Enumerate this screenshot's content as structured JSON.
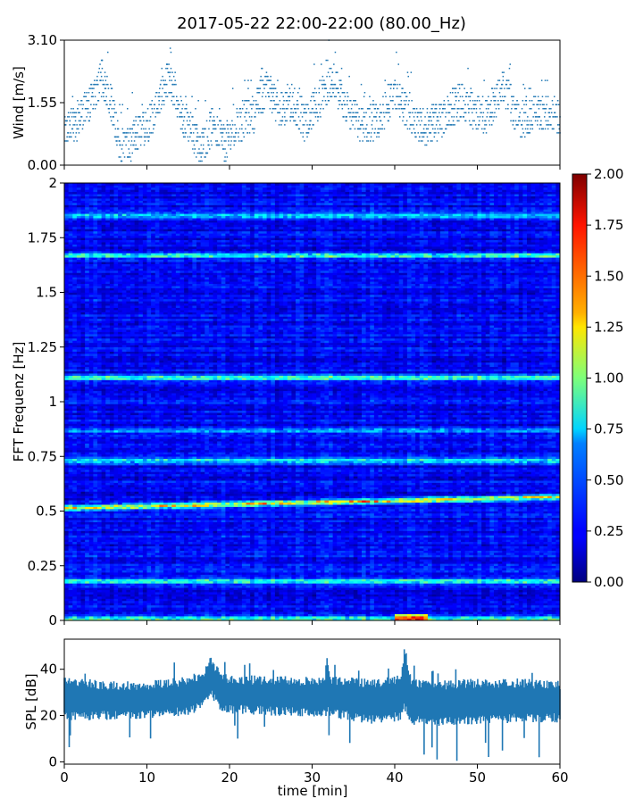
{
  "figure": {
    "title": "2017-05-22 22:00-22:00 (80.00_Hz)"
  },
  "chart_data": [
    {
      "type": "scatter",
      "panel": "wind",
      "ylabel": "Wind [m/s]",
      "xlim": [
        0,
        60
      ],
      "ylim": [
        0,
        3.1
      ],
      "yticks": [
        "0.00",
        "1.55",
        "3.10"
      ],
      "xtick_values": [
        0,
        10,
        20,
        30,
        40,
        50,
        60
      ],
      "x_unit": "min",
      "color": "#1f77b4",
      "envelope": [
        {
          "t": 0,
          "y": 0.8
        },
        {
          "t": 1.5,
          "y": 1.1
        },
        {
          "t": 3,
          "y": 1.5
        },
        {
          "t": 4.5,
          "y": 2.2
        },
        {
          "t": 5.5,
          "y": 1.6
        },
        {
          "t": 6.5,
          "y": 0.6
        },
        {
          "t": 7.5,
          "y": 0.4
        },
        {
          "t": 8.5,
          "y": 0.7
        },
        {
          "t": 10,
          "y": 1.0
        },
        {
          "t": 11.5,
          "y": 1.6
        },
        {
          "t": 12.5,
          "y": 2.2
        },
        {
          "t": 14,
          "y": 1.3
        },
        {
          "t": 15.5,
          "y": 0.8
        },
        {
          "t": 16.5,
          "y": 0.5
        },
        {
          "t": 18,
          "y": 1.0
        },
        {
          "t": 19.5,
          "y": 0.5
        },
        {
          "t": 21,
          "y": 1.0
        },
        {
          "t": 23,
          "y": 1.3
        },
        {
          "t": 24.5,
          "y": 2.0
        },
        {
          "t": 26,
          "y": 1.3
        },
        {
          "t": 27.5,
          "y": 1.6
        },
        {
          "t": 29,
          "y": 1.0
        },
        {
          "t": 31,
          "y": 1.7
        },
        {
          "t": 32.5,
          "y": 2.1
        },
        {
          "t": 34,
          "y": 1.4
        },
        {
          "t": 36,
          "y": 1.0
        },
        {
          "t": 38,
          "y": 1.1
        },
        {
          "t": 40,
          "y": 1.8
        },
        {
          "t": 42,
          "y": 1.1
        },
        {
          "t": 44,
          "y": 0.9
        },
        {
          "t": 46,
          "y": 1.2
        },
        {
          "t": 48,
          "y": 1.6
        },
        {
          "t": 49.5,
          "y": 1.3
        },
        {
          "t": 51,
          "y": 1.2
        },
        {
          "t": 53,
          "y": 2.0
        },
        {
          "t": 55,
          "y": 1.1
        },
        {
          "t": 57,
          "y": 1.3
        },
        {
          "t": 59,
          "y": 1.3
        },
        {
          "t": 60,
          "y": 1.2
        }
      ]
    },
    {
      "type": "heatmap",
      "panel": "spectrogram",
      "ylabel": "FFT Frequenz [Hz]",
      "xlim": [
        0,
        60
      ],
      "ylim": [
        0,
        2
      ],
      "yticks": [
        "0",
        "0.25",
        "0.5",
        "0.75",
        "1",
        "1.25",
        "1.5",
        "1.75",
        "2"
      ],
      "colormap": "jet",
      "colorbar": {
        "min": 0,
        "max": 2,
        "ticks": [
          "0.00",
          "0.25",
          "0.50",
          "0.75",
          "1.00",
          "1.25",
          "1.50",
          "1.75",
          "2.00"
        ]
      },
      "background_level": 0.25,
      "bands": [
        {
          "freq": 0.01,
          "level": 1.15
        },
        {
          "freq": 0.18,
          "level": 1.0
        },
        {
          "freq": 0.54,
          "level": 1.5
        },
        {
          "freq": 0.73,
          "level": 0.95
        },
        {
          "freq": 1.11,
          "level": 1.1
        },
        {
          "freq": 1.67,
          "level": 1.2
        },
        {
          "freq": 0.87,
          "level": 0.8
        },
        {
          "freq": 1.85,
          "level": 0.8
        }
      ]
    },
    {
      "type": "area",
      "panel": "spl",
      "ylabel": "SPL [dB]",
      "xlabel": "time [min]",
      "xlim": [
        0,
        60
      ],
      "ylim": [
        -1,
        53
      ],
      "yticks": [
        "0",
        "20",
        "40"
      ],
      "xticks": [
        "0",
        "10",
        "20",
        "30",
        "40",
        "50",
        "60"
      ],
      "color": "#1f77b4",
      "envelope": [
        {
          "t": 0,
          "low": 20,
          "high": 35
        },
        {
          "t": 5,
          "low": 20,
          "high": 33
        },
        {
          "t": 10,
          "low": 20,
          "high": 33
        },
        {
          "t": 15,
          "low": 22,
          "high": 35
        },
        {
          "t": 17,
          "low": 25,
          "high": 38
        },
        {
          "t": 17.7,
          "low": 30,
          "high": 45
        },
        {
          "t": 19,
          "low": 23,
          "high": 36
        },
        {
          "t": 25,
          "low": 22,
          "high": 35
        },
        {
          "t": 31.5,
          "low": 21,
          "high": 35
        },
        {
          "t": 31.8,
          "low": 22,
          "high": 43
        },
        {
          "t": 32.2,
          "low": 21,
          "high": 35
        },
        {
          "t": 38,
          "low": 18,
          "high": 34
        },
        {
          "t": 40.8,
          "low": 20,
          "high": 36
        },
        {
          "t": 41.2,
          "low": 24,
          "high": 50
        },
        {
          "t": 42,
          "low": 18,
          "high": 34
        },
        {
          "t": 45,
          "low": 17,
          "high": 33
        },
        {
          "t": 50,
          "low": 18,
          "high": 34
        },
        {
          "t": 55,
          "low": 19,
          "high": 34
        },
        {
          "t": 60,
          "low": 19,
          "high": 33
        }
      ]
    }
  ]
}
